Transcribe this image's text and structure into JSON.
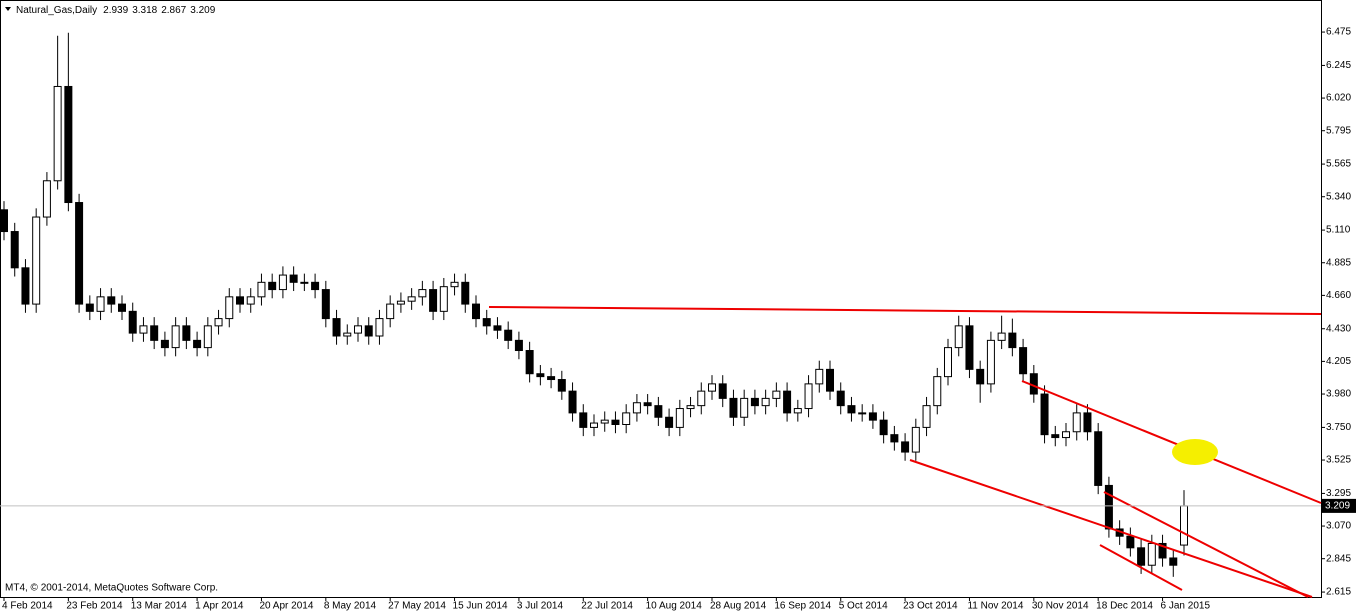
{
  "chart_data": {
    "type": "candlestick",
    "title": "Natural_Gas,Daily",
    "footer": "MT4, © 2001-2014, MetaQuotes Software Corp.",
    "categories": [
      "4 Feb 2014",
      null,
      null,
      null,
      null,
      null,
      "23 Feb 2014",
      null,
      null,
      null,
      null,
      null,
      "13 Mar 2014",
      null,
      null,
      null,
      null,
      null,
      "1 Apr 2014",
      null,
      null,
      null,
      null,
      null,
      "20 Apr 2014",
      null,
      null,
      null,
      null,
      null,
      "8 May 2014",
      null,
      null,
      null,
      null,
      null,
      "27 May 2014",
      null,
      null,
      null,
      null,
      null,
      "15 Jun 2014",
      null,
      null,
      null,
      null,
      null,
      "3 Jul 2014",
      null,
      null,
      null,
      null,
      null,
      "22 Jul 2014",
      null,
      null,
      null,
      null,
      null,
      "10 Aug 2014",
      null,
      null,
      null,
      null,
      null,
      "28 Aug 2014",
      null,
      null,
      null,
      null,
      null,
      "16 Sep 2014",
      null,
      null,
      null,
      null,
      null,
      "5 Oct 2014",
      null,
      null,
      null,
      null,
      null,
      "23 Oct 2014",
      null,
      null,
      null,
      null,
      null,
      "11 Nov 2014",
      null,
      null,
      null,
      null,
      null,
      "30 Nov 2014",
      null,
      null,
      null,
      null,
      null,
      "18 Dec 2014",
      null,
      null,
      null,
      null,
      null,
      "6 Jan 2015",
      null,
      null
    ],
    "open": [
      5.25,
      5.1,
      4.85,
      4.6,
      5.2,
      5.45,
      6.1,
      5.3,
      4.6,
      4.55,
      4.65,
      4.6,
      4.55,
      4.4,
      4.45,
      4.35,
      4.3,
      4.45,
      4.35,
      4.3,
      4.45,
      4.5,
      4.65,
      4.6,
      4.65,
      4.75,
      4.7,
      4.8,
      4.75,
      4.75,
      4.7,
      4.5,
      4.38,
      4.4,
      4.45,
      4.38,
      4.5,
      4.6,
      4.62,
      4.65,
      4.7,
      4.55,
      4.72,
      4.75,
      4.6,
      4.5,
      4.45,
      4.42,
      4.35,
      4.28,
      4.12,
      4.1,
      4.08,
      4.0,
      3.85,
      3.75,
      3.78,
      3.8,
      3.77,
      3.85,
      3.92,
      3.9,
      3.82,
      3.75,
      3.88,
      3.9,
      4.0,
      4.05,
      3.95,
      3.82,
      3.95,
      3.9,
      3.95,
      4.0,
      3.85,
      3.88,
      4.05,
      4.15,
      4.0,
      3.9,
      3.85,
      3.85,
      3.8,
      3.7,
      3.65,
      3.58,
      3.75,
      3.9,
      4.1,
      4.3,
      4.45,
      4.15,
      4.05,
      4.35,
      4.4,
      4.3,
      4.12,
      3.98,
      3.7,
      3.68,
      3.72,
      3.85,
      3.72,
      3.35,
      3.05,
      3.0,
      2.92,
      2.8,
      2.95,
      2.85,
      2.939
    ],
    "high": [
      5.31,
      5.16,
      4.91,
      5.26,
      5.51,
      6.45,
      6.47,
      5.36,
      4.66,
      4.71,
      4.71,
      4.66,
      4.61,
      4.51,
      4.51,
      4.41,
      4.51,
      4.51,
      4.41,
      4.51,
      4.56,
      4.71,
      4.71,
      4.71,
      4.81,
      4.81,
      4.86,
      4.86,
      4.81,
      4.81,
      4.76,
      4.56,
      4.46,
      4.51,
      4.51,
      4.56,
      4.66,
      4.68,
      4.71,
      4.76,
      4.76,
      4.78,
      4.81,
      4.81,
      4.66,
      4.56,
      4.51,
      4.48,
      4.41,
      4.34,
      4.18,
      4.16,
      4.14,
      4.06,
      3.91,
      3.84,
      3.86,
      3.86,
      3.91,
      3.98,
      3.98,
      3.96,
      3.88,
      3.94,
      3.96,
      4.06,
      4.11,
      4.11,
      4.01,
      4.01,
      4.01,
      4.01,
      4.06,
      4.06,
      3.94,
      4.11,
      4.21,
      4.21,
      4.06,
      3.96,
      3.91,
      3.91,
      3.86,
      3.76,
      3.71,
      3.81,
      3.96,
      4.16,
      4.36,
      4.52,
      4.51,
      4.21,
      4.41,
      4.52,
      4.5,
      4.36,
      4.18,
      4.04,
      3.76,
      3.78,
      3.91,
      3.91,
      3.78,
      3.41,
      3.11,
      3.06,
      2.98,
      3.01,
      3.01,
      2.91,
      3.318
    ],
    "low": [
      5.04,
      4.79,
      4.54,
      4.54,
      5.14,
      5.39,
      5.24,
      4.54,
      4.49,
      4.49,
      4.54,
      4.49,
      4.34,
      4.34,
      4.29,
      4.24,
      4.24,
      4.29,
      4.24,
      4.24,
      4.39,
      4.44,
      4.54,
      4.54,
      4.59,
      4.64,
      4.64,
      4.69,
      4.69,
      4.64,
      4.44,
      4.32,
      4.32,
      4.34,
      4.32,
      4.32,
      4.44,
      4.54,
      4.56,
      4.59,
      4.49,
      4.49,
      4.66,
      4.54,
      4.44,
      4.39,
      4.36,
      4.29,
      4.22,
      4.06,
      4.04,
      4.02,
      3.94,
      3.79,
      3.69,
      3.69,
      3.72,
      3.71,
      3.71,
      3.79,
      3.84,
      3.76,
      3.69,
      3.69,
      3.82,
      3.84,
      3.94,
      3.89,
      3.76,
      3.76,
      3.84,
      3.84,
      3.89,
      3.79,
      3.79,
      3.82,
      3.99,
      3.94,
      3.84,
      3.79,
      3.79,
      3.74,
      3.64,
      3.59,
      3.52,
      3.52,
      3.69,
      3.84,
      4.04,
      4.24,
      4.09,
      3.92,
      3.99,
      4.29,
      4.24,
      4.06,
      3.92,
      3.64,
      3.62,
      3.62,
      3.66,
      3.66,
      3.29,
      2.99,
      2.94,
      2.86,
      2.74,
      2.74,
      2.79,
      2.72,
      2.867
    ],
    "close": [
      5.1,
      4.85,
      4.6,
      5.2,
      5.45,
      6.1,
      5.3,
      4.6,
      4.55,
      4.65,
      4.6,
      4.55,
      4.4,
      4.45,
      4.35,
      4.3,
      4.45,
      4.35,
      4.3,
      4.45,
      4.5,
      4.65,
      4.6,
      4.65,
      4.75,
      4.7,
      4.8,
      4.75,
      4.75,
      4.7,
      4.5,
      4.38,
      4.4,
      4.45,
      4.38,
      4.5,
      4.6,
      4.62,
      4.65,
      4.7,
      4.55,
      4.72,
      4.75,
      4.6,
      4.5,
      4.45,
      4.42,
      4.35,
      4.28,
      4.12,
      4.1,
      4.08,
      4.0,
      3.85,
      3.75,
      3.78,
      3.8,
      3.77,
      3.85,
      3.92,
      3.9,
      3.82,
      3.75,
      3.88,
      3.9,
      4.0,
      4.05,
      3.95,
      3.82,
      3.95,
      3.9,
      3.95,
      4.0,
      3.85,
      3.88,
      4.05,
      4.15,
      4.0,
      3.9,
      3.85,
      3.85,
      3.8,
      3.7,
      3.65,
      3.58,
      3.75,
      3.9,
      4.1,
      4.3,
      4.45,
      4.15,
      4.05,
      4.35,
      4.4,
      4.3,
      4.12,
      3.98,
      3.7,
      3.68,
      3.72,
      3.85,
      3.72,
      3.35,
      3.05,
      3.0,
      2.92,
      2.8,
      2.95,
      2.85,
      2.8,
      3.209
    ],
    "ylim": [
      2.581,
      6.696
    ],
    "yticks": [
      6.475,
      6.245,
      {
        "value": 6.02,
        "label": "6.020"
      },
      5.795,
      5.565,
      {
        "value": 5.34,
        "label": "5.340"
      },
      {
        "value": 5.11,
        "label": "5.110"
      },
      4.885,
      {
        "value": 4.66,
        "label": "4.660"
      },
      {
        "value": 4.43,
        "label": "4.430"
      },
      4.205,
      {
        "value": 3.98,
        "label": "3.980"
      },
      {
        "value": 3.75,
        "label": "3.750"
      },
      3.525,
      3.295,
      {
        "value": 3.07,
        "label": "3.070"
      },
      2.845,
      2.615
    ],
    "grid": false,
    "up_color": "#ffffff",
    "down_color": "#000000"
  }
}
